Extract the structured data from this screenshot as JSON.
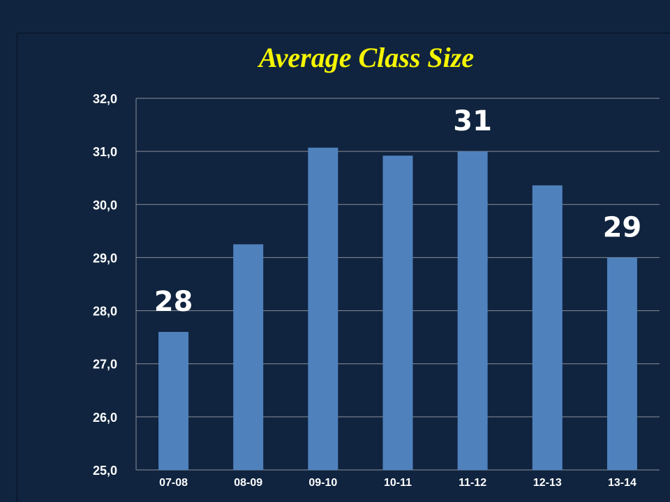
{
  "chart_data": {
    "type": "bar",
    "title": "Average Class Size",
    "xlabel": "",
    "ylabel": "",
    "categories": [
      "07-08",
      "08-09",
      "09-10",
      "10-11",
      "11-12",
      "12-13",
      "13-14"
    ],
    "values": [
      27.6,
      29.25,
      31.07,
      30.92,
      31.0,
      30.36,
      29.0
    ],
    "data_labels": [
      "28",
      "",
      "",
      "",
      "31",
      "",
      "29"
    ],
    "ylim": [
      25,
      32
    ],
    "yticks": [
      "25,0",
      "26,0",
      "27,0",
      "28,0",
      "29,0",
      "30,0",
      "31,0",
      "32,0"
    ],
    "grid": true,
    "legend": "none",
    "colors": {
      "bar": "#4f81bd",
      "background": "#10243f",
      "title": "#f5f500",
      "text": "#ffffff",
      "grid": "#8a8f98"
    }
  }
}
